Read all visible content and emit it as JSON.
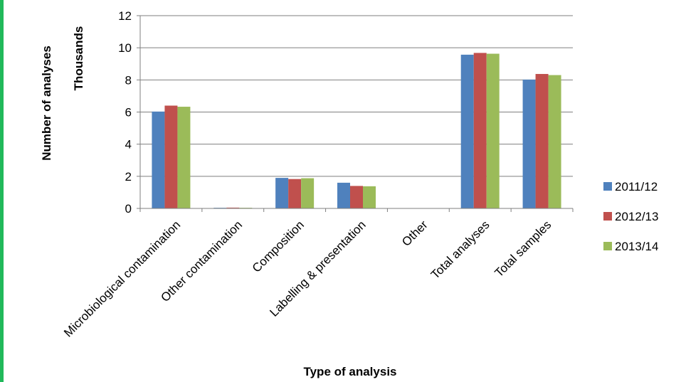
{
  "colors": {
    "strip": "#21b95a",
    "grid": "#7f7f7f",
    "axis": "#7f7f7f"
  },
  "chart_data": {
    "type": "bar",
    "title": "",
    "xlabel": "Type of analysis",
    "ylabel": "Number of analyses",
    "yunit": "Thousands",
    "ylim": [
      0,
      12
    ],
    "yticks": [
      0,
      2,
      4,
      6,
      8,
      10,
      12
    ],
    "grid": true,
    "legend_position": "right",
    "categories": [
      "Microbiological contamination",
      "Other contamination",
      "Composition",
      "Labelling & presentation",
      "Other",
      "Total analyses",
      "Total samples"
    ],
    "series": [
      {
        "name": "2011/12",
        "color": "#4f81bd",
        "values": [
          6.03,
          0.04,
          1.9,
          1.6,
          0,
          9.57,
          8.02
        ]
      },
      {
        "name": "2012/13",
        "color": "#c0504d",
        "values": [
          6.4,
          0.05,
          1.83,
          1.4,
          0,
          9.68,
          8.37
        ]
      },
      {
        "name": "2013/14",
        "color": "#9bbb59",
        "values": [
          6.33,
          0.04,
          1.88,
          1.38,
          0,
          9.63,
          8.3
        ]
      }
    ]
  }
}
